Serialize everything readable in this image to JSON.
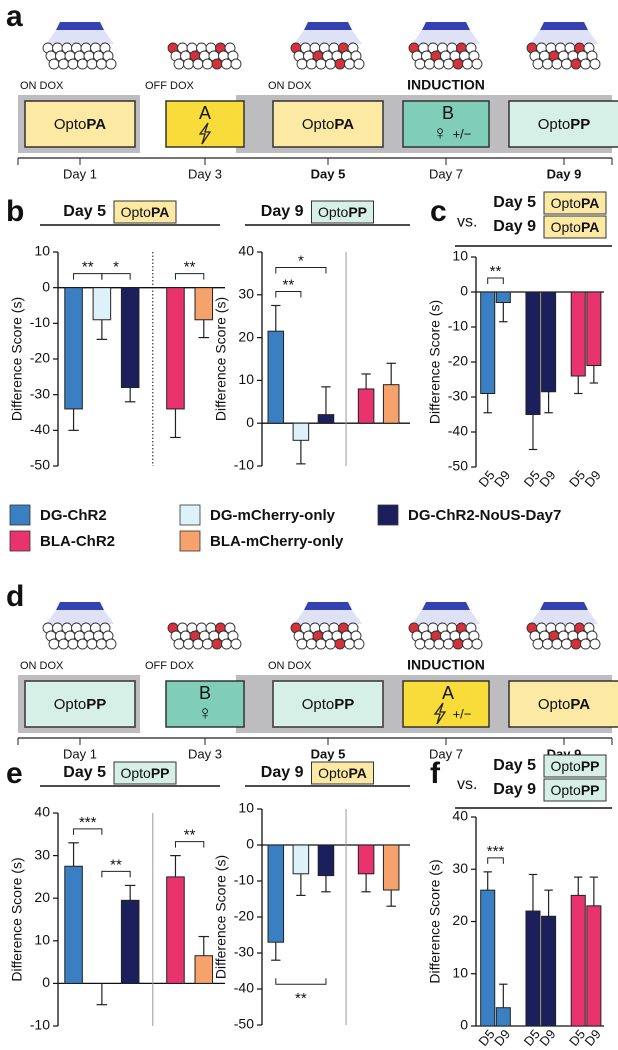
{
  "panel_labels": [
    "a",
    "b",
    "c",
    "d",
    "e",
    "f"
  ],
  "timelines": [
    {
      "stages": [
        {
          "dox": "ON DOX",
          "light": true,
          "tagged": false,
          "box": {
            "prefix": "Opto",
            "bold": "PA",
            "color": "#fbe9a4"
          },
          "day": "Day 1",
          "day_bold": false
        },
        {
          "dox": "OFF DOX",
          "light": false,
          "tagged": true,
          "box": {
            "context": "A",
            "lightning": true,
            "color": "#f8dc3a"
          },
          "day": "Day 3",
          "day_bold": false
        },
        {
          "dox": "ON DOX",
          "light": true,
          "tagged": true,
          "box": {
            "prefix": "Opto",
            "bold": "PA",
            "color": "#fbe9a4"
          },
          "day": "Day 5",
          "day_bold": true
        },
        {
          "header": "INDUCTION",
          "light": true,
          "tagged": true,
          "box": {
            "context": "B",
            "symbol": "♀",
            "extra": "+/−",
            "color": "#80cdb8"
          },
          "day": "Day 7",
          "day_bold": false
        },
        {
          "light": true,
          "tagged": true,
          "box": {
            "prefix": "Opto",
            "bold": "PP",
            "color": "#d6efe7"
          },
          "day": "Day 9",
          "day_bold": true
        }
      ]
    },
    {
      "stages": [
        {
          "dox": "ON DOX",
          "light": true,
          "tagged": false,
          "box": {
            "prefix": "Opto",
            "bold": "PP",
            "color": "#d6efe7"
          },
          "day": "Day 1",
          "day_bold": false
        },
        {
          "dox": "OFF DOX",
          "light": false,
          "tagged": true,
          "box": {
            "context": "B",
            "symbol": "♀",
            "color": "#80cdb8"
          },
          "day": "Day 3",
          "day_bold": false
        },
        {
          "dox": "ON DOX",
          "light": true,
          "tagged": true,
          "box": {
            "prefix": "Opto",
            "bold": "PP",
            "color": "#d6efe7"
          },
          "day": "Day 5",
          "day_bold": true
        },
        {
          "header": "INDUCTION",
          "light": true,
          "tagged": true,
          "box": {
            "context": "A",
            "lightning": true,
            "extra": "+/−",
            "color": "#f8dc3a"
          },
          "day": "Day 7",
          "day_bold": false
        },
        {
          "light": true,
          "tagged": true,
          "box": {
            "prefix": "Opto",
            "bold": "PA",
            "color": "#fbe9a4"
          },
          "day": "Day 9",
          "day_bold": true
        }
      ]
    }
  ],
  "legend": [
    {
      "name": "DG-ChR2",
      "color": "#3a7fc1"
    },
    {
      "name": "DG-mCherry-only",
      "color": "#dcf1f8"
    },
    {
      "name": "DG-ChR2-NoUS-Day7",
      "color": "#1b1f5c",
      "text_color": "#1b1f5c"
    },
    {
      "name": "BLA-ChR2",
      "color": "#e8336f"
    },
    {
      "name": "BLA-mCherry-only",
      "color": "#f6a26c"
    }
  ],
  "chart_data": [
    {
      "type": "bar",
      "title": "Day 5",
      "tag": {
        "prefix": "Opto",
        "bold": "PA",
        "color": "#fbe9a4"
      },
      "y_label": "Difference Score (s)",
      "ylim": [
        -50,
        10
      ],
      "yticks": [
        10,
        0,
        -10,
        -20,
        -30,
        -40,
        -50
      ],
      "series_index": [
        0,
        1,
        2,
        3,
        4
      ],
      "values": [
        -34,
        -9,
        -28,
        -34,
        -9
      ],
      "errors": [
        6,
        5.5,
        4,
        8,
        5
      ],
      "separator_after": 2,
      "separator_style": "dotted",
      "significance": [
        {
          "label": "**",
          "from": 0,
          "to": 1,
          "level": 0
        },
        {
          "label": "*",
          "from": 1,
          "to": 2,
          "level": 0
        },
        {
          "label": "**",
          "from": 3,
          "to": 4,
          "level": 0
        }
      ]
    },
    {
      "type": "bar",
      "title": "Day 9",
      "tag": {
        "prefix": "Opto",
        "bold": "PP",
        "color": "#d6efe7"
      },
      "y_label": "Difference Score (s)",
      "ylim": [
        -10,
        40
      ],
      "yticks": [
        40,
        30,
        20,
        10,
        0,
        -10
      ],
      "series_index": [
        0,
        1,
        2,
        3,
        4
      ],
      "values": [
        21.5,
        -4,
        2,
        8,
        9
      ],
      "errors": [
        6,
        5.5,
        6.5,
        3.5,
        5
      ],
      "separator_after": 2,
      "separator_style": "solid",
      "significance": [
        {
          "label": "**",
          "from": 0,
          "to": 1,
          "level": 0
        },
        {
          "label": "*",
          "from": 0,
          "to": 2,
          "level": 1
        }
      ]
    },
    {
      "type": "bar",
      "title_prefix": "vs.",
      "comparisons": [
        {
          "title": "Day 5",
          "tag": {
            "prefix": "Opto",
            "bold": "PA",
            "color": "#fbe9a4"
          }
        },
        {
          "title": "Day 9",
          "tag": {
            "prefix": "Opto",
            "bold": "PA",
            "color": "#fbe9a4"
          }
        }
      ],
      "y_label": "Difference Score (s)",
      "ylim": [
        -50,
        10
      ],
      "yticks": [
        10,
        0,
        -10,
        -20,
        -30,
        -40,
        -50
      ],
      "categories": [
        "D5",
        "D9",
        "D5",
        "D9",
        "D5",
        "D9"
      ],
      "series_index": [
        0,
        0,
        2,
        2,
        3,
        3
      ],
      "values": [
        -29,
        -3,
        -35,
        -28.5,
        -24,
        -21
      ],
      "errors": [
        5.5,
        5.5,
        10,
        6,
        5,
        5
      ],
      "significance": [
        {
          "label": "**",
          "from": 0,
          "to": 1,
          "level": 0
        }
      ]
    },
    {
      "type": "bar",
      "title": "Day 5",
      "tag": {
        "prefix": "Opto",
        "bold": "PP",
        "color": "#d6efe7"
      },
      "y_label": "Difference Score (s)",
      "ylim": [
        -10,
        40
      ],
      "yticks": [
        40,
        30,
        20,
        10,
        0,
        -10
      ],
      "series_index": [
        0,
        1,
        2,
        3,
        4
      ],
      "values": [
        27.5,
        0,
        19.5,
        25,
        6.5
      ],
      "errors": [
        5.5,
        5,
        3.5,
        5,
        4.5
      ],
      "separator_after": 2,
      "separator_style": "solid",
      "significance": [
        {
          "label": "***",
          "from": 0,
          "to": 1,
          "level": 0
        },
        {
          "label": "**",
          "from": 1,
          "to": 2,
          "level": 0
        },
        {
          "label": "**",
          "from": 3,
          "to": 4,
          "level": 0
        }
      ]
    },
    {
      "type": "bar",
      "title": "Day 9",
      "tag": {
        "prefix": "Opto",
        "bold": "PA",
        "color": "#fbe9a4"
      },
      "y_label": "Difference Score (s)",
      "ylim": [
        -50,
        10
      ],
      "yticks": [
        10,
        0,
        -10,
        -20,
        -30,
        -40,
        -50
      ],
      "series_index": [
        0,
        1,
        2,
        3,
        4
      ],
      "values": [
        -27,
        -8,
        -8.5,
        -8,
        -12.5
      ],
      "errors": [
        5,
        6,
        4.5,
        5,
        4.5
      ],
      "separator_after": 2,
      "separator_style": "solid",
      "significance": [
        {
          "label": "**",
          "from": 0,
          "to": 2,
          "level": 0,
          "below": true
        }
      ]
    },
    {
      "type": "bar",
      "title_prefix": "vs.",
      "comparisons": [
        {
          "title": "Day 5",
          "tag": {
            "prefix": "Opto",
            "bold": "PP",
            "color": "#d6efe7"
          }
        },
        {
          "title": "Day 9",
          "tag": {
            "prefix": "Opto",
            "bold": "PP",
            "color": "#d6efe7"
          }
        }
      ],
      "y_label": "Difference Score (s)",
      "ylim": [
        0,
        40
      ],
      "yticks": [
        40,
        30,
        20,
        10,
        0
      ],
      "categories": [
        "D5",
        "D9",
        "D5",
        "D9",
        "D5",
        "D9"
      ],
      "series_index": [
        0,
        0,
        2,
        2,
        3,
        3
      ],
      "values": [
        26,
        3.5,
        22,
        21,
        25,
        23
      ],
      "errors": [
        3.5,
        4.5,
        7,
        5,
        3.5,
        5.5
      ],
      "significance": [
        {
          "label": "***",
          "from": 0,
          "to": 1,
          "level": 0
        }
      ]
    }
  ]
}
